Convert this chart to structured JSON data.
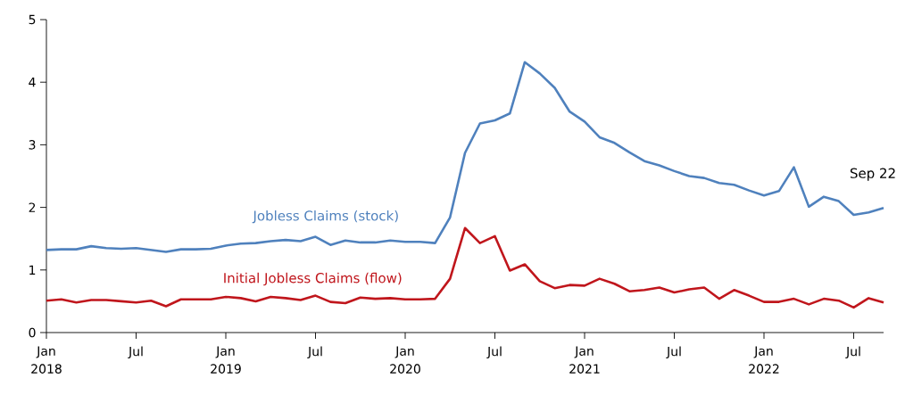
{
  "chart_data": {
    "type": "line",
    "x": [
      "2018-01",
      "2018-02",
      "2018-03",
      "2018-04",
      "2018-05",
      "2018-06",
      "2018-07",
      "2018-08",
      "2018-09",
      "2018-10",
      "2018-11",
      "2018-12",
      "2019-01",
      "2019-02",
      "2019-03",
      "2019-04",
      "2019-05",
      "2019-06",
      "2019-07",
      "2019-08",
      "2019-09",
      "2019-10",
      "2019-11",
      "2019-12",
      "2020-01",
      "2020-02",
      "2020-03",
      "2020-04",
      "2020-05",
      "2020-06",
      "2020-07",
      "2020-08",
      "2020-09",
      "2020-10",
      "2020-11",
      "2020-12",
      "2021-01",
      "2021-02",
      "2021-03",
      "2021-04",
      "2021-05",
      "2021-06",
      "2021-07",
      "2021-08",
      "2021-09",
      "2021-10",
      "2021-11",
      "2021-12",
      "2022-01",
      "2022-02",
      "2022-03",
      "2022-04",
      "2022-05",
      "2022-06",
      "2022-07",
      "2022-08",
      "2022-09"
    ],
    "series": [
      {
        "name": "Jobless Claims (stock)",
        "color": "#4f81bd",
        "values": [
          1.32,
          1.33,
          1.33,
          1.38,
          1.35,
          1.34,
          1.35,
          1.32,
          1.29,
          1.33,
          1.33,
          1.34,
          1.39,
          1.42,
          1.43,
          1.46,
          1.48,
          1.46,
          1.53,
          1.4,
          1.47,
          1.44,
          1.44,
          1.47,
          1.45,
          1.45,
          1.43,
          1.84,
          2.87,
          3.34,
          3.39,
          3.5,
          4.32,
          4.14,
          3.91,
          3.53,
          3.37,
          3.12,
          3.03,
          2.88,
          2.74,
          2.67,
          2.58,
          2.5,
          2.47,
          2.39,
          2.36,
          2.27,
          2.19,
          2.26,
          2.64,
          2.01,
          2.17,
          2.1,
          1.88,
          1.92,
          1.99
        ]
      },
      {
        "name": "Initial Jobless Claims (flow)",
        "color": "#c0161c",
        "values": [
          0.51,
          0.53,
          0.48,
          0.52,
          0.52,
          0.5,
          0.48,
          0.51,
          0.42,
          0.53,
          0.53,
          0.53,
          0.57,
          0.55,
          0.5,
          0.57,
          0.55,
          0.52,
          0.59,
          0.49,
          0.47,
          0.56,
          0.54,
          0.55,
          0.53,
          0.53,
          0.54,
          0.86,
          1.67,
          1.43,
          1.54,
          0.99,
          1.09,
          0.82,
          0.71,
          0.76,
          0.75,
          0.86,
          0.78,
          0.66,
          0.68,
          0.72,
          0.64,
          0.69,
          0.72,
          0.54,
          0.68,
          0.59,
          0.49,
          0.49,
          0.54,
          0.45,
          0.54,
          0.51,
          0.4,
          0.55,
          0.48
        ]
      }
    ],
    "xlim": [
      "2018-01",
      "2022-09"
    ],
    "xticks": [
      {
        "value": "2018-01",
        "label": "Jan 2018"
      },
      {
        "value": "2018-07",
        "label": "Jul"
      },
      {
        "value": "2019-01",
        "label": "Jan 2019"
      },
      {
        "value": "2019-07",
        "label": "Jul"
      },
      {
        "value": "2020-01",
        "label": "Jan 2020"
      },
      {
        "value": "2020-07",
        "label": "Jul"
      },
      {
        "value": "2021-01",
        "label": "Jan 2021"
      },
      {
        "value": "2021-07",
        "label": "Jul"
      },
      {
        "value": "2022-01",
        "label": "Jan 2022"
      },
      {
        "value": "2022-07",
        "label": "Jul"
      }
    ],
    "ylim": [
      0,
      5
    ],
    "yticks": [
      0,
      1,
      2,
      3,
      4,
      5
    ],
    "annotations": [
      {
        "text": "Sep 22",
        "x": "2022-09",
        "y": 1.99
      }
    ],
    "grid": false,
    "legend": false,
    "marker": "none",
    "line_style": "solid"
  }
}
